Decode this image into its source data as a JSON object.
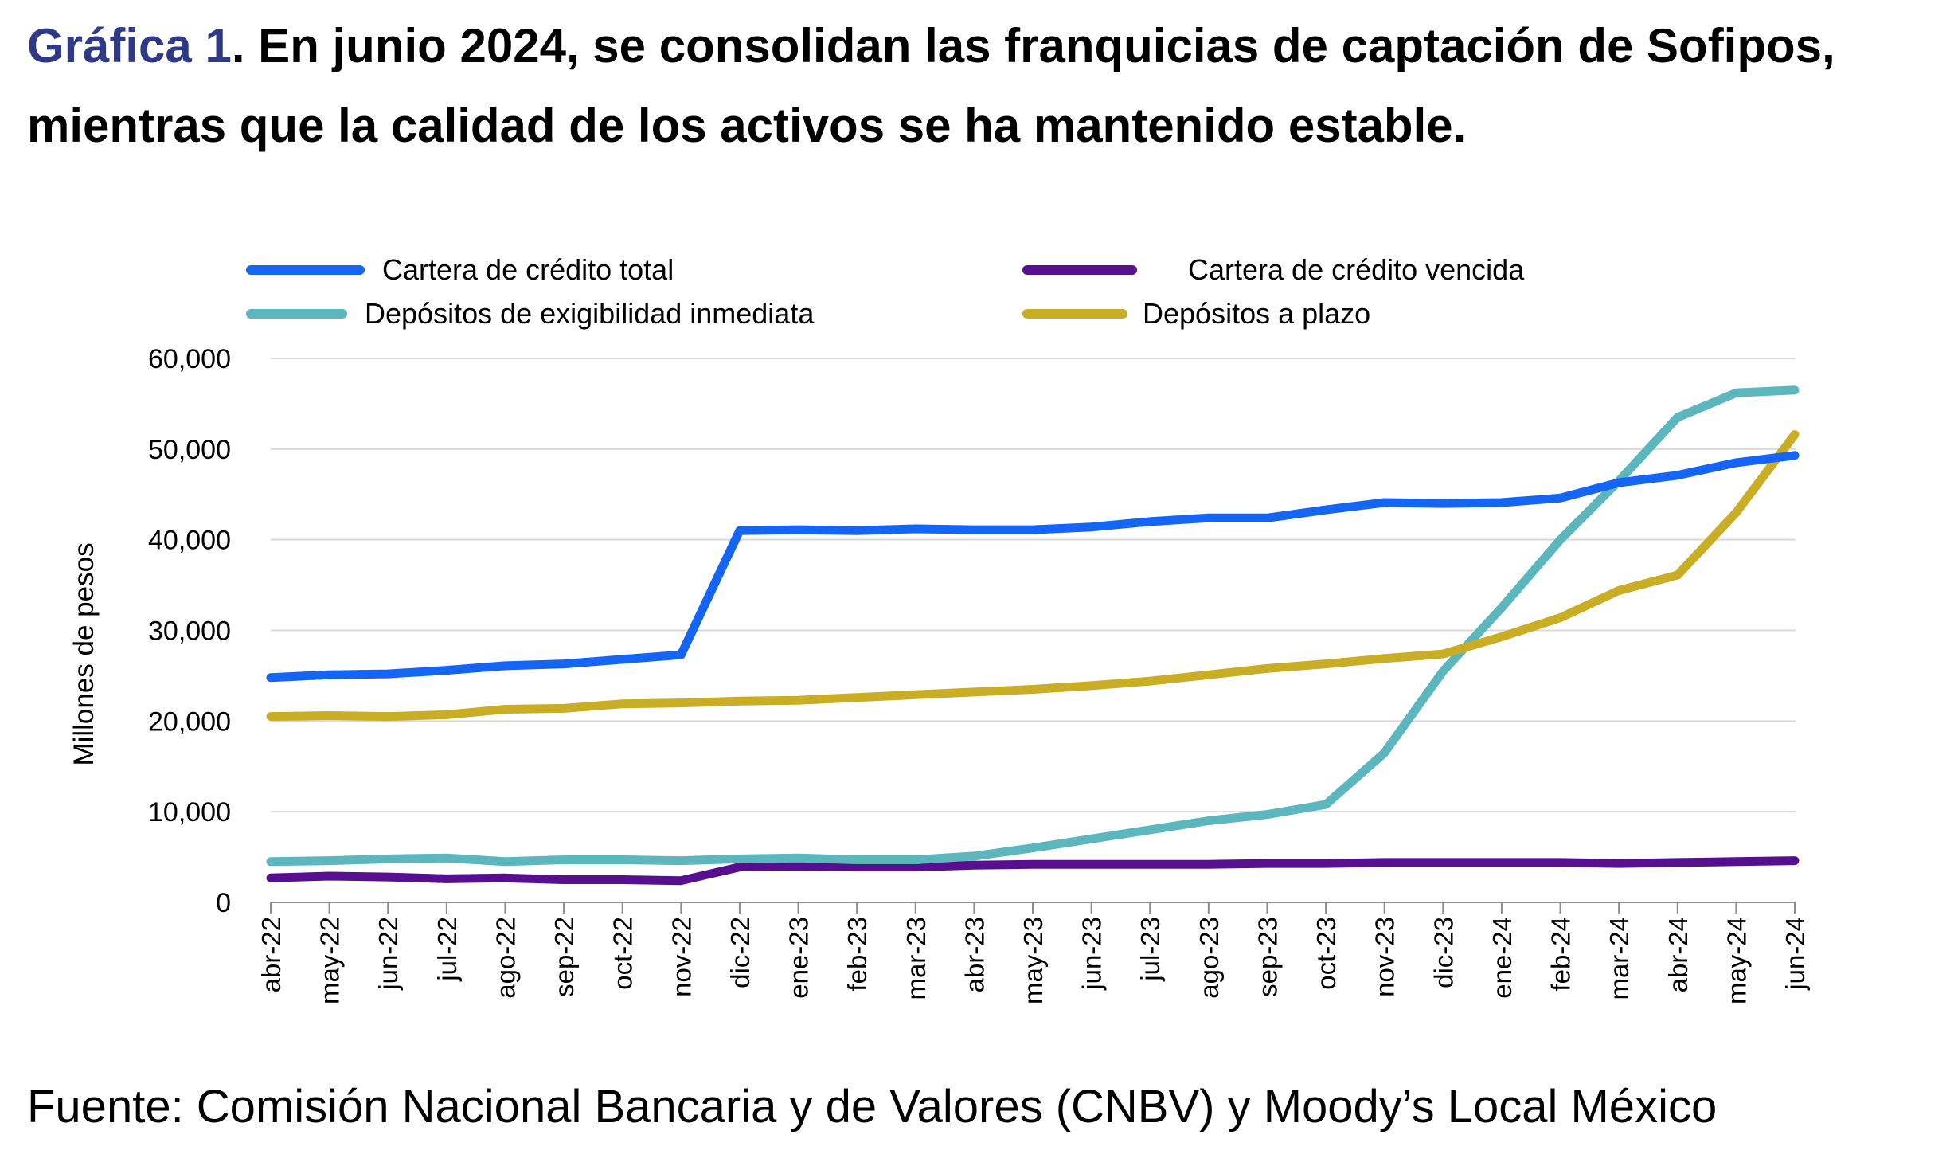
{
  "header": {
    "title_lead": "Gráfica 1",
    "title_rest": ". En junio 2024, se consolidan las franquicias de captación de Sofipos, mientras que la calidad de los activos se ha mantenido estable."
  },
  "footer": {
    "source": "Fuente: Comisión Nacional Bancaria y de Valores (CNBV) y Moody’s Local México"
  },
  "chart_data": {
    "type": "line",
    "title": "",
    "xlabel": "",
    "ylabel": "Millones de pesos",
    "ylim": [
      0,
      60000
    ],
    "yticks": [
      0,
      10000,
      20000,
      30000,
      40000,
      50000,
      60000
    ],
    "ytick_labels": [
      "0",
      "10,000",
      "20,000",
      "30,000",
      "40,000",
      "50,000",
      "60,000"
    ],
    "grid": true,
    "legend_position": "top",
    "categories": [
      "abr-22",
      "may-22",
      "jun-22",
      "jul-22",
      "ago-22",
      "sep-22",
      "oct-22",
      "nov-22",
      "dic-22",
      "ene-23",
      "feb-23",
      "mar-23",
      "abr-23",
      "may-23",
      "jun-23",
      "jul-23",
      "ago-23",
      "sep-23",
      "oct-23",
      "nov-23",
      "dic-23",
      "ene-24",
      "feb-24",
      "mar-24",
      "abr-24",
      "may-24",
      "jun-24"
    ],
    "series": [
      {
        "name": "Cartera de crédito total",
        "color": "#1565f5",
        "values": [
          24800,
          25100,
          25200,
          25600,
          26100,
          26300,
          26800,
          27300,
          41000,
          41100,
          41000,
          41200,
          41100,
          41100,
          41400,
          42000,
          42400,
          42400,
          43300,
          44100,
          44000,
          44100,
          44600,
          46300,
          47100,
          48500,
          49300
        ]
      },
      {
        "name": "Cartera de crédito vencida",
        "color": "#560f8f",
        "values": [
          2700,
          2900,
          2800,
          2600,
          2700,
          2500,
          2500,
          2400,
          3900,
          4000,
          3900,
          3900,
          4100,
          4200,
          4200,
          4200,
          4200,
          4300,
          4300,
          4400,
          4400,
          4400,
          4400,
          4300,
          4400,
          4500,
          4600
        ]
      },
      {
        "name": "Depósitos de exigibilidad inmediata",
        "color": "#5bb7bd",
        "values": [
          4500,
          4600,
          4800,
          4900,
          4500,
          4700,
          4700,
          4600,
          4800,
          4900,
          4700,
          4700,
          5100,
          6000,
          7000,
          8000,
          9000,
          9700,
          10800,
          16500,
          25500,
          32500,
          40000,
          46500,
          53500,
          56200,
          56500
        ]
      },
      {
        "name": "Depósitos a plazo",
        "color": "#c9ad25",
        "values": [
          20500,
          20600,
          20500,
          20700,
          21300,
          21400,
          21900,
          22000,
          22200,
          22300,
          22600,
          22900,
          23200,
          23500,
          23900,
          24400,
          25100,
          25800,
          26300,
          26900,
          27400,
          29300,
          31400,
          34400,
          36100,
          43000,
          51600
        ]
      }
    ]
  }
}
